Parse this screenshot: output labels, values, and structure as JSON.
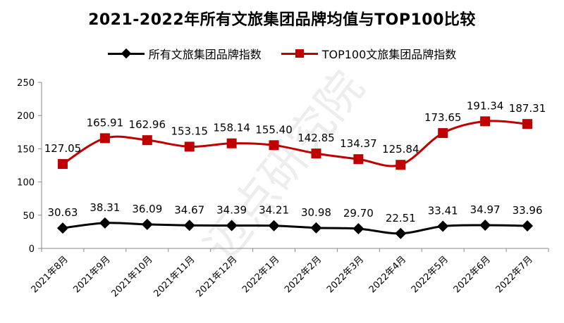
{
  "chart_data": {
    "type": "line",
    "title": "2021-2022年所有文旅集团品牌均值与TOP100比较",
    "categories": [
      "2021年8月",
      "2021年9月",
      "2021年10月",
      "2021年11月",
      "2021年12月",
      "2022年1月",
      "2022年2月",
      "2022年3月",
      "2022年4月",
      "2022年5月",
      "2022年6月",
      "2022年7月"
    ],
    "series": [
      {
        "name": "所有文旅集团品牌指数",
        "color": "#000000",
        "marker": "diamond",
        "values": [
          30.63,
          38.31,
          36.09,
          34.67,
          34.39,
          34.21,
          30.98,
          29.7,
          22.51,
          33.41,
          34.97,
          33.96
        ],
        "labels": [
          "30.63",
          "38.31",
          "36.09",
          "34.67",
          "34.39",
          "34.21",
          "30.98",
          "29.70",
          "22.51",
          "33.41",
          "34.97",
          "33.96"
        ]
      },
      {
        "name": "TOP100文旅集团品牌指数",
        "color": "#c00000",
        "marker": "square",
        "values": [
          127.05,
          165.91,
          162.96,
          153.15,
          158.14,
          155.4,
          142.85,
          134.37,
          125.84,
          173.65,
          191.34,
          187.31
        ],
        "labels": [
          "127.05",
          "165.91",
          "162.96",
          "153.15",
          "158.14",
          "155.40",
          "142.85",
          "134.37",
          "125.84",
          "173.65",
          "191.34",
          "187.31"
        ]
      }
    ],
    "yticks": [
      "0",
      "50",
      "100",
      "150",
      "200",
      "250"
    ],
    "ylim": [
      0,
      250
    ],
    "xlabel": "",
    "ylabel": "",
    "legend_position": "top-center",
    "grid": false,
    "watermark": "迈点研究院"
  }
}
